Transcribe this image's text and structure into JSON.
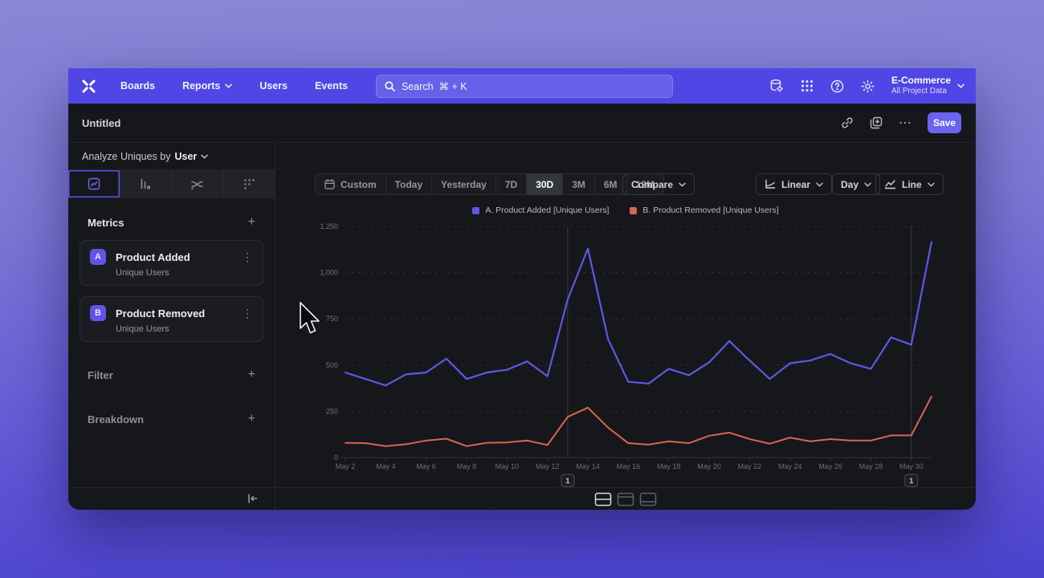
{
  "nav": {
    "items": [
      {
        "label": "Boards"
      },
      {
        "label": "Reports",
        "has_chevron": true
      },
      {
        "label": "Users"
      },
      {
        "label": "Events"
      }
    ],
    "search_placeholder": "Search  ⌘ + K",
    "project": {
      "name": "E-Commerce",
      "sub": "All Project Data"
    }
  },
  "report_header": {
    "title": "Untitled",
    "save_label": "Save"
  },
  "sidebar": {
    "analyze_label": "Analyze Uniques by",
    "analyze_value": "User",
    "metrics": {
      "title": "Metrics",
      "items": [
        {
          "badge": "A",
          "name": "Product Added",
          "sub": "Unique Users"
        },
        {
          "badge": "B",
          "name": "Product Removed",
          "sub": "Unique Users"
        }
      ]
    },
    "sections": [
      {
        "label": "Filter"
      },
      {
        "label": "Breakdown"
      }
    ]
  },
  "toolbar": {
    "ranges": [
      "Custom",
      "Today",
      "Yesterday",
      "7D",
      "30D",
      "3M",
      "6M",
      "12M"
    ],
    "selected_range": "30D",
    "compare_label": "Compare",
    "scale_label": "Linear",
    "interval_label": "Day",
    "chart_type_label": "Line"
  },
  "icons": {
    "kebab": "⋮",
    "more": "⋯",
    "plus": "+"
  },
  "colors": {
    "navbar": "#4f46e5",
    "save_button": "#6a63f0",
    "accent_badge": "#6153e6",
    "series_a": "#6156e3",
    "series_b": "#da6450",
    "window_bg": "#16171b"
  },
  "chart_data": {
    "type": "line",
    "x": [
      "May 2",
      "May 3",
      "May 4",
      "May 5",
      "May 6",
      "May 7",
      "May 8",
      "May 9",
      "May 10",
      "May 11",
      "May 12",
      "May 13",
      "May 14",
      "May 15",
      "May 16",
      "May 17",
      "May 18",
      "May 19",
      "May 20",
      "May 21",
      "May 22",
      "May 23",
      "May 24",
      "May 25",
      "May 26",
      "May 27",
      "May 28",
      "May 29",
      "May 30",
      "May 31"
    ],
    "x_tick_labels": [
      "May 2",
      "May 4",
      "May 6",
      "May 8",
      "May 10",
      "May 12",
      "May 14",
      "May 16",
      "May 18",
      "May 20",
      "May 22",
      "May 24",
      "May 26",
      "May 28",
      "May 30"
    ],
    "series": [
      {
        "name": "A. Product Added [Unique Users]",
        "color": "#6156e3",
        "values": [
          460,
          425,
          390,
          450,
          460,
          535,
          425,
          460,
          475,
          520,
          440,
          855,
          1130,
          640,
          410,
          400,
          480,
          445,
          515,
          630,
          525,
          425,
          510,
          525,
          560,
          510,
          480,
          650,
          610,
          1165
        ]
      },
      {
        "name": "B. Product Removed [Unique Users]",
        "color": "#da6450",
        "values": [
          80,
          78,
          62,
          72,
          92,
          102,
          62,
          80,
          82,
          92,
          68,
          220,
          270,
          162,
          78,
          70,
          88,
          78,
          118,
          135,
          100,
          75,
          108,
          88,
          100,
          92,
          92,
          120,
          120,
          330
        ]
      }
    ],
    "ylim": [
      0,
      1250
    ],
    "yticks": [
      0,
      250,
      500,
      750,
      1000,
      1250
    ],
    "grid": "horizontal-dashed",
    "legend_position": "top",
    "annotations": [
      {
        "label": "1",
        "x": "May 13"
      },
      {
        "label": "1",
        "x": "May 30"
      }
    ]
  }
}
